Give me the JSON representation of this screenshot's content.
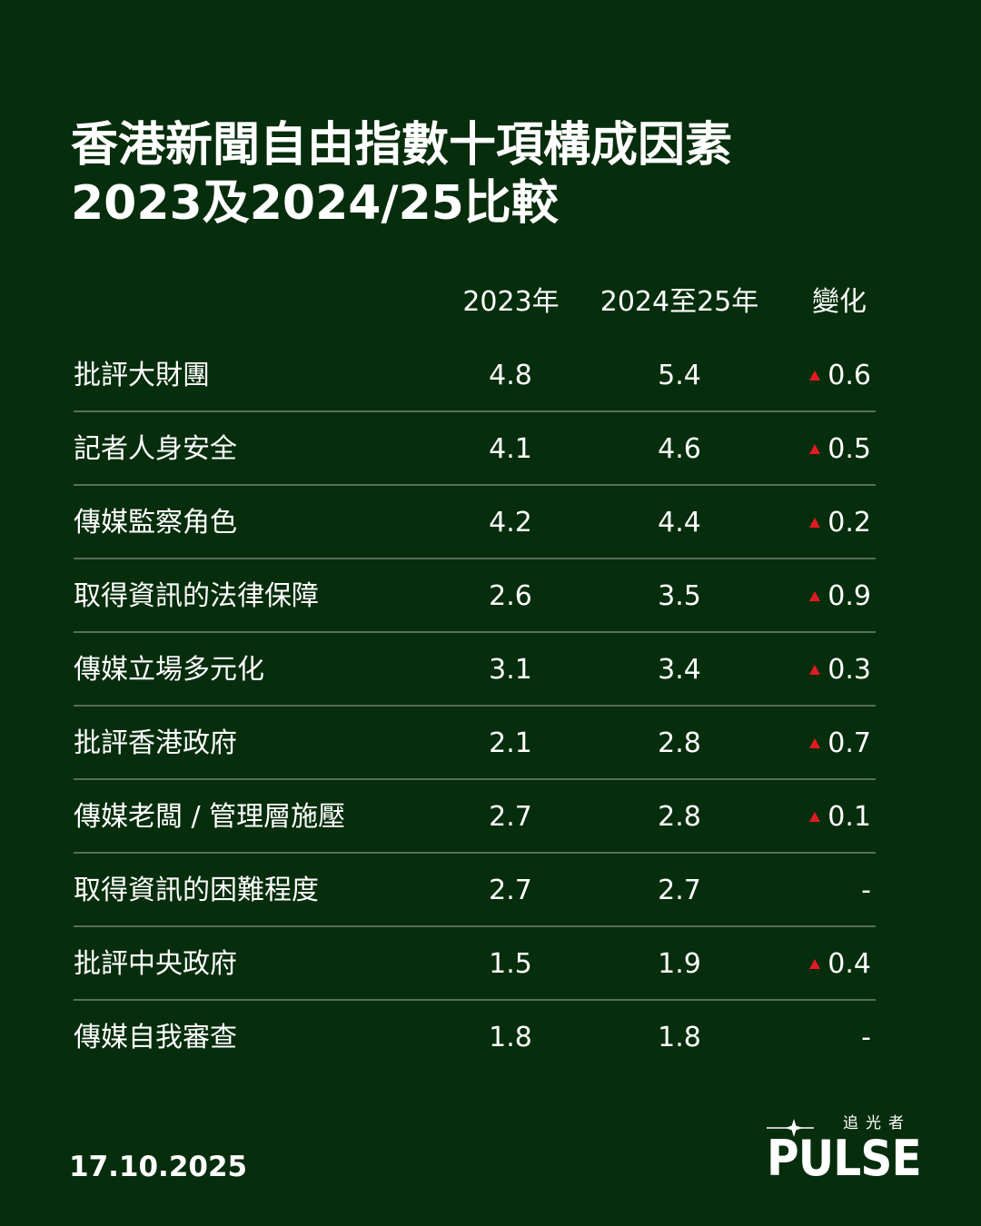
{
  "title": {
    "line1": "香港新聞自由指數十項構成因素",
    "line2": "2023及2024/25比較"
  },
  "columns": [
    "2023年",
    "2024至25年",
    "變化"
  ],
  "colors": {
    "background": "#062d0c",
    "text": "#ffffff",
    "increase_marker": "#e21b23"
  },
  "chart_data": {
    "type": "table",
    "title": "香港新聞自由指數十項構成因素 2023及2024/25比較",
    "columns": [
      "2023年",
      "2024至25年",
      "變化"
    ],
    "rows": [
      {
        "factor": "批評大財團",
        "y2023": "4.8",
        "y2024_25": "5.4",
        "change": "0.6",
        "direction": "up"
      },
      {
        "factor": "記者人身安全",
        "y2023": "4.1",
        "y2024_25": "4.6",
        "change": "0.5",
        "direction": "up"
      },
      {
        "factor": "傳媒監察角色",
        "y2023": "4.2",
        "y2024_25": "4.4",
        "change": "0.2",
        "direction": "up"
      },
      {
        "factor": "取得資訊的法律保障",
        "y2023": "2.6",
        "y2024_25": "3.5",
        "change": "0.9",
        "direction": "up"
      },
      {
        "factor": "傳媒立場多元化",
        "y2023": "3.1",
        "y2024_25": "3.4",
        "change": "0.3",
        "direction": "up"
      },
      {
        "factor": "批評香港政府",
        "y2023": "2.1",
        "y2024_25": "2.8",
        "change": "0.7",
        "direction": "up"
      },
      {
        "factor": "傳媒老闆 / 管理層施壓",
        "y2023": "2.7",
        "y2024_25": "2.8",
        "change": "0.1",
        "direction": "up"
      },
      {
        "factor": "取得資訊的困難程度",
        "y2023": "2.7",
        "y2024_25": "2.7",
        "change": "-",
        "direction": "none"
      },
      {
        "factor": "批評中央政府",
        "y2023": "1.5",
        "y2024_25": "1.9",
        "change": "0.4",
        "direction": "up"
      },
      {
        "factor": "傳媒自我審查",
        "y2023": "1.8",
        "y2024_25": "1.8",
        "change": "-",
        "direction": "none"
      }
    ]
  },
  "footer": {
    "date": "17.10.2025",
    "logo_sub": "追光者",
    "logo_main": "PULSE"
  }
}
